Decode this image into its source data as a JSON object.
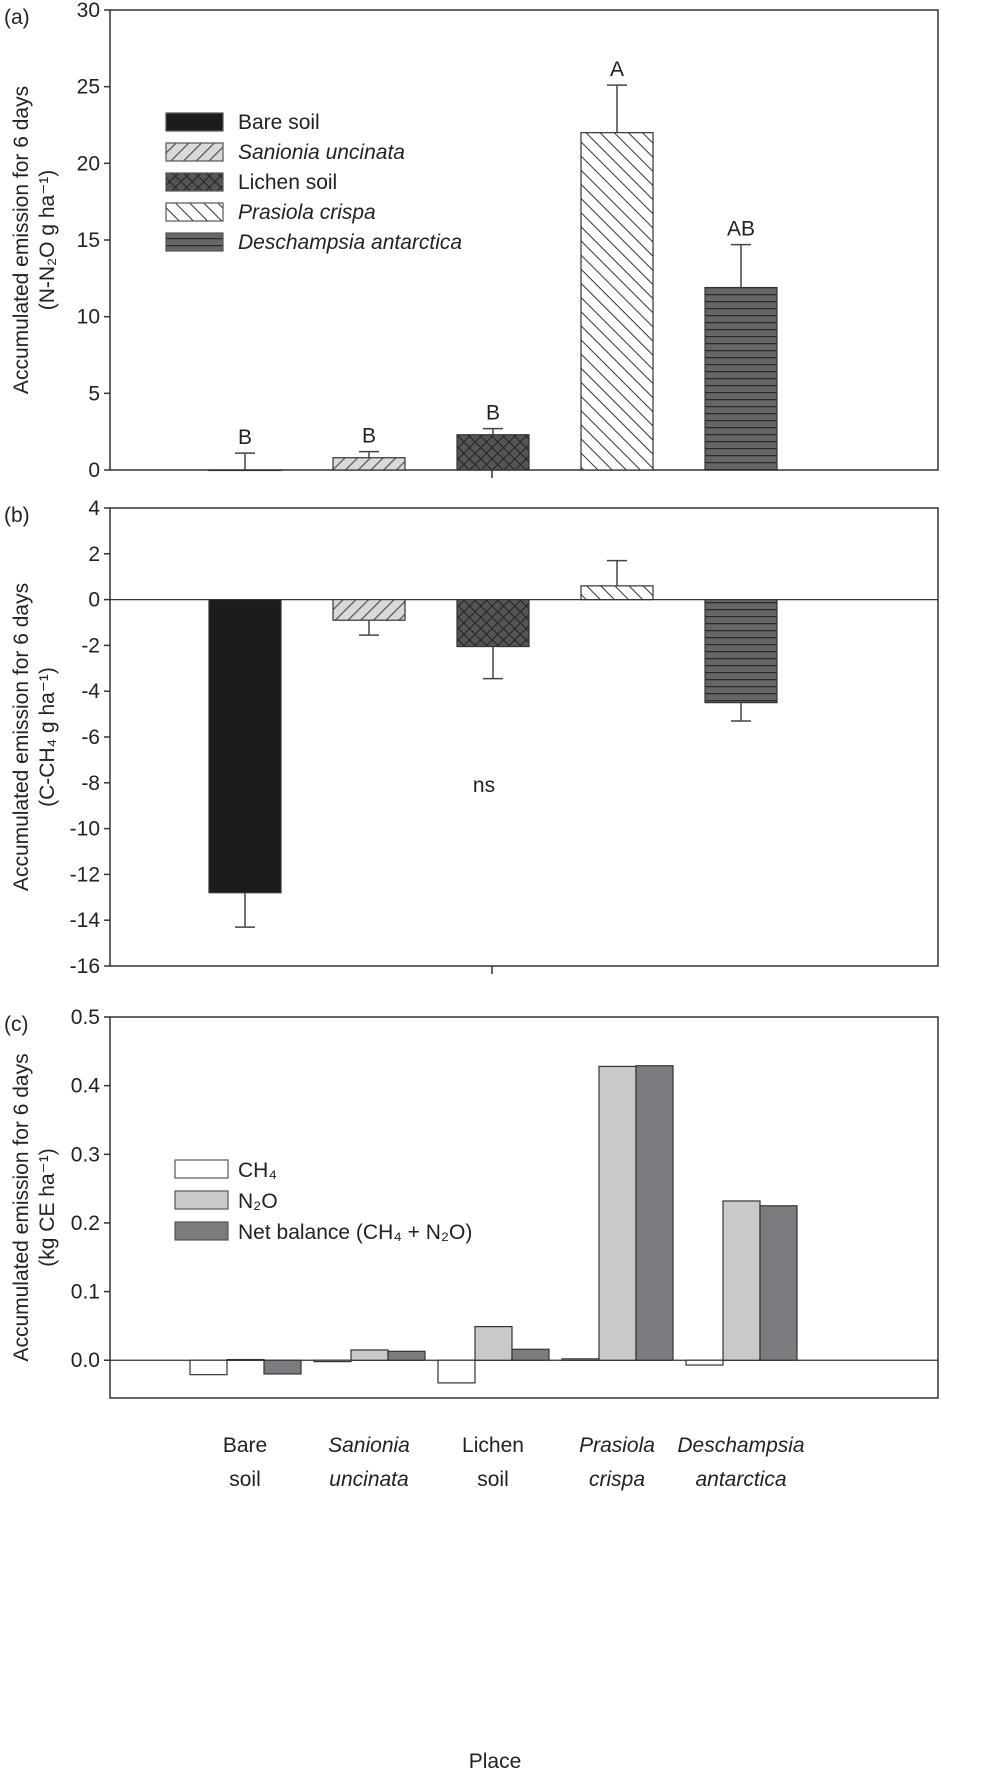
{
  "chart_data": [
    {
      "panel_label": "(a)",
      "type": "bar",
      "ylabel": [
        "Accumulated emission for 6 days",
        "(N-N₂O g ha⁻¹)"
      ],
      "ylim": [
        0,
        30
      ],
      "yticks": [
        0,
        5,
        10,
        15,
        20,
        25,
        30
      ],
      "categories": [
        "Bare soil",
        "Sanionia uncinata",
        "Lichen soil",
        "Prasiola crispa",
        "Deschampsia antarctica"
      ],
      "values": [
        0,
        0.8,
        2.3,
        22.0,
        11.9
      ],
      "error_upper": [
        1.1,
        1.2,
        2.7,
        25.1,
        14.7
      ],
      "significance_letters": [
        "B",
        "B",
        "B",
        "A",
        "AB"
      ],
      "legend": [
        "Bare soil",
        "Sanionia uncinata",
        "Lichen soil",
        "Prasiola crispa",
        "Deschampsia antarctica"
      ],
      "legend_position": "upper-left"
    },
    {
      "panel_label": "(b)",
      "type": "bar",
      "ylabel": [
        "Accumulated emission for 6 days",
        "(C-CH₄ g ha⁻¹)"
      ],
      "ylim": [
        -16,
        4
      ],
      "yticks": [
        -16,
        -14,
        -12,
        -10,
        -8,
        -6,
        -4,
        -2,
        0,
        2,
        4
      ],
      "categories": [
        "Bare soil",
        "Sanionia uncinata",
        "Lichen soil",
        "Prasiola crispa",
        "Deschampsia antarctica"
      ],
      "values": [
        -12.8,
        -0.9,
        -2.05,
        0.6,
        -4.5
      ],
      "error_end": [
        -14.3,
        -1.55,
        -3.45,
        1.7,
        -5.3
      ],
      "annotation": "ns"
    },
    {
      "panel_label": "(c)",
      "type": "bar",
      "ylabel": [
        "Accumulated emission for 6 days",
        "(kg CE ha⁻¹)"
      ],
      "xlabel": "Place",
      "ylim": [
        -0.055,
        0.5
      ],
      "yticks": [
        "0.0",
        "0.1",
        "0.2",
        "0.3",
        "0.4",
        "0.5"
      ],
      "categories": [
        [
          "Bare",
          "soil"
        ],
        [
          "Sanionia",
          "uncinata"
        ],
        [
          "Lichen",
          "soil"
        ],
        [
          "Prasiola",
          "crispa"
        ],
        [
          "Deschampsia",
          "antarctica"
        ]
      ],
      "italic_categories": [
        false,
        true,
        false,
        true,
        true
      ],
      "series": [
        {
          "name": "CH₄",
          "color": "#ffffff",
          "values": [
            -0.021,
            -0.002,
            -0.033,
            0.002,
            -0.007
          ]
        },
        {
          "name": "N₂O",
          "color": "#c8c9cb",
          "values": [
            0.001,
            0.015,
            0.049,
            0.428,
            0.232
          ]
        },
        {
          "name": "Net balance (CH₄ + N₂O)",
          "color": "#7b7c80",
          "values": [
            -0.02,
            0.013,
            0.016,
            0.429,
            0.225
          ]
        }
      ],
      "legend_position": "upper-left"
    }
  ]
}
